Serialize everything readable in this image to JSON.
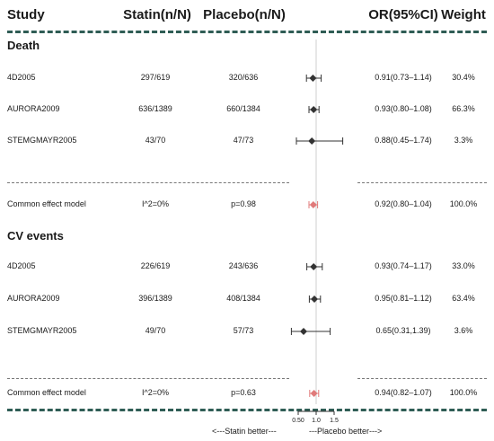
{
  "header": {
    "study": "Study",
    "statin": "Statin(n/N)",
    "placebo": "Placebo(n/N)",
    "or": "OR(95%CI)",
    "weight": "Weight"
  },
  "footer": {
    "statin_better": "<---Statin better---",
    "placebo_better": "---Placebo  better--->"
  },
  "chart_data": {
    "type": "forest",
    "null_line": 1,
    "xlim": [
      0.5,
      1.5
    ],
    "x_ticks": [
      "0.50",
      "1.0",
      "1.5"
    ],
    "sections": [
      {
        "title": "Death",
        "studies": [
          {
            "study": "4D2005",
            "statin": "297/619",
            "placebo": "320/636",
            "or": 0.91,
            "lo": 0.73,
            "hi": 1.14,
            "or_text": "0.91(0.73–1.14)",
            "weight": "30.4%"
          },
          {
            "study": "AURORA2009",
            "statin": "636/1389",
            "placebo": "660/1384",
            "or": 0.93,
            "lo": 0.8,
            "hi": 1.08,
            "or_text": "0.93(0.80–1.08)",
            "weight": "66.3%"
          },
          {
            "study": "STEMGMAYR2005",
            "statin": "43/70",
            "placebo": "47/73",
            "or": 0.88,
            "lo": 0.45,
            "hi": 1.74,
            "or_text": "0.88(0.45–1.74)",
            "weight": "3.3%"
          }
        ],
        "common": {
          "label": "Common effect model",
          "statin": "I^2=0%",
          "placebo": "p=0.98",
          "or": 0.92,
          "lo": 0.8,
          "hi": 1.04,
          "or_text": "0.92(0.80–1.04)",
          "weight": "100.0%"
        }
      },
      {
        "title": "CV events",
        "studies": [
          {
            "study": "4D2005",
            "statin": "226/619",
            "placebo": "243/636",
            "or": 0.93,
            "lo": 0.74,
            "hi": 1.17,
            "or_text": "0.93(0.74–1.17)",
            "weight": "33.0%"
          },
          {
            "study": "AURORA2009",
            "statin": "396/1389",
            "placebo": "408/1384",
            "or": 0.95,
            "lo": 0.81,
            "hi": 1.12,
            "or_text": "0.95(0.81–1.12)",
            "weight": "63.4%"
          },
          {
            "study": "STEMGMAYR2005",
            "statin": "49/70",
            "placebo": "57/73",
            "or": 0.65,
            "lo": 0.31,
            "hi": 1.39,
            "or_text": "0.65(0.31,1.39)",
            "weight": "3.6%"
          }
        ],
        "common": {
          "label": "Common effect model",
          "statin": "I^2=0%",
          "placebo": "p=0.63",
          "or": 0.94,
          "lo": 0.82,
          "hi": 1.07,
          "or_text": "0.94(0.82–1.07)",
          "weight": "100.0%"
        }
      }
    ],
    "colors": {
      "marker": "#333333",
      "common": "#e07a7a",
      "rule": "#2f5d55",
      "null_line": "#cfcfcf"
    }
  }
}
